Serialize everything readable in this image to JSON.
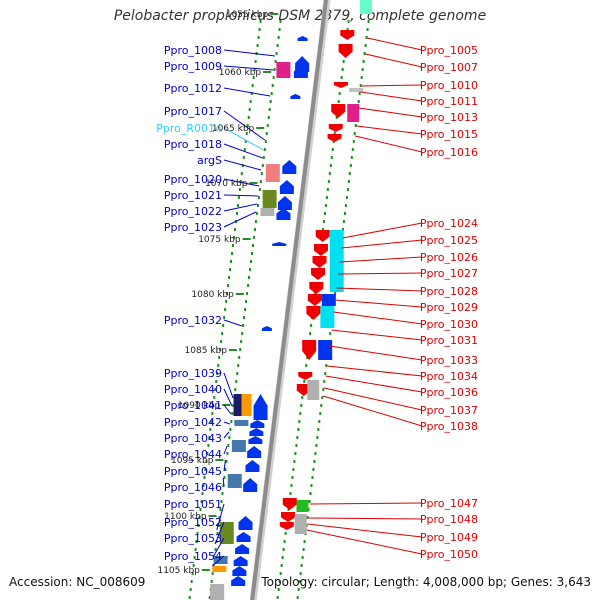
{
  "title": "Pelobacter propionicus DSM 2379, complete genome",
  "footer": {
    "accession": "Accession: NC_008609",
    "summary": "Topology: circular; Length: 4,008,000 bp; Genes: 3,643"
  },
  "colors": {
    "forward_label": "#0000cc",
    "reverse_label": "#dd0000",
    "rna_label": "#33ccff",
    "backbone": "#8c8c8c",
    "tick": "#2a8a2a"
  },
  "scale_labels": [
    "1055 kbp",
    "1060 kbp",
    "1065 kbp",
    "1070 kbp",
    "1075 kbp",
    "1080 kbp",
    "1085 kbp",
    "1090 kbp",
    "1095 kbp",
    "1100 kbp",
    "1105 kbp"
  ],
  "left_labels": [
    "Ppro_1008",
    "Ppro_1009",
    "Ppro_1012",
    "Ppro_1017",
    "Ppro_R0014",
    "Ppro_1018",
    "argS",
    "Ppro_1020",
    "Ppro_1021",
    "Ppro_1022",
    "Ppro_1023",
    "Ppro_1032",
    "Ppro_1039",
    "Ppro_1040",
    "Ppro_1041",
    "Ppro_1042",
    "Ppro_1043",
    "Ppro_1044",
    "Ppro_1045",
    "Ppro_1046",
    "Ppro_1051",
    "Ppro_1052",
    "Ppro_1053",
    "Ppro_1054"
  ],
  "right_labels": [
    "Ppro_1005",
    "Ppro_1007",
    "Ppro_1010",
    "Ppro_1011",
    "Ppro_1013",
    "Ppro_1015",
    "Ppro_1016",
    "Ppro_1024",
    "Ppro_1025",
    "Ppro_1026",
    "Ppro_1027",
    "Ppro_1028",
    "Ppro_1029",
    "Ppro_1030",
    "Ppro_1031",
    "Ppro_1033",
    "Ppro_1034",
    "Ppro_1036",
    "Ppro_1037",
    "Ppro_1038",
    "Ppro_1047",
    "Ppro_1048",
    "Ppro_1049",
    "Ppro_1050"
  ]
}
